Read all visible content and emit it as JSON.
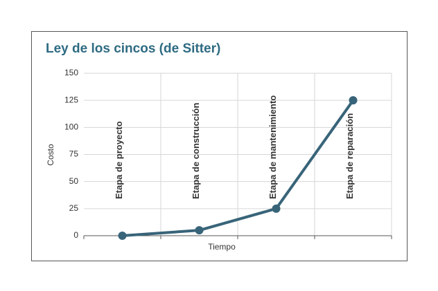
{
  "chart_data": {
    "type": "line",
    "title": "Ley de los cincos (de Sitter)",
    "xlabel": "Tiempo",
    "ylabel": "Costo",
    "categories": [
      "Etapa de proyecto",
      "Etapa de construcción",
      "Etapa de mantenimiento",
      "Etapa de reparación"
    ],
    "values": [
      0,
      5,
      25,
      125
    ],
    "color": "#386479",
    "ylim": [
      0,
      150
    ],
    "yticks": [
      0,
      25,
      50,
      75,
      100,
      125,
      150
    ],
    "grid": true
  }
}
